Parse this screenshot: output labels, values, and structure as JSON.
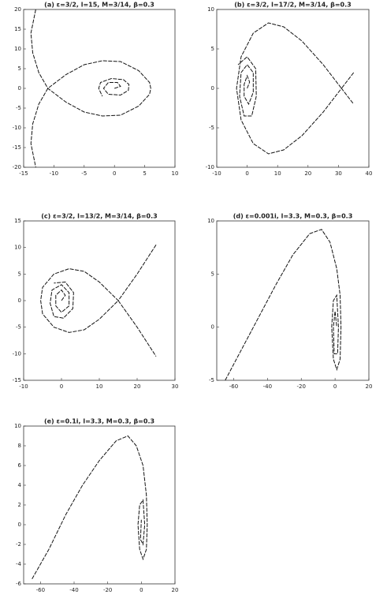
{
  "chart_data": [
    {
      "type": "line",
      "title": "(a) ε=3/2, l=15, M=3/14, β=0.3",
      "color": "#111111",
      "xlim": [
        -15,
        10
      ],
      "xticks": [
        -15,
        -10,
        -5,
        0,
        5,
        10
      ],
      "ylim": [
        -20,
        20
      ],
      "yticks": [
        -20,
        -15,
        -10,
        -5,
        0,
        5,
        10,
        15,
        20
      ],
      "x": [
        -13,
        -13.8,
        -13.5,
        -12.5,
        -11,
        -8,
        -5,
        -2,
        1,
        4,
        5.8,
        6,
        5.8,
        4,
        1,
        -2,
        -5,
        -8,
        -11,
        -12.5,
        -13.5,
        -13.8,
        -13,
        null,
        0,
        1,
        0.5,
        -1,
        -1.8,
        -1,
        1,
        2.3,
        2.4,
        1.5,
        -0.5,
        -2.3,
        -2.6,
        -2
      ],
      "values": [
        20,
        14,
        9,
        4,
        0,
        -3.5,
        -6,
        -7,
        -6.8,
        -4.5,
        -1.5,
        0,
        1.5,
        4.5,
        6.8,
        7,
        6,
        3.5,
        0,
        -4,
        -9,
        -14,
        -20,
        null,
        0,
        0.5,
        1.5,
        1.5,
        0,
        -1.5,
        -1.7,
        -0.5,
        1,
        2.2,
        2.5,
        1.5,
        0,
        -2
      ]
    },
    {
      "type": "line",
      "title": "(b) ε=3/2, l=17/2, M=3/14, β=0.3",
      "color": "#111111",
      "xlim": [
        -10,
        40
      ],
      "xticks": [
        -10,
        0,
        10,
        20,
        30,
        40
      ],
      "ylim": [
        -10,
        10
      ],
      "yticks": [
        -10,
        -5,
        0,
        5,
        10
      ],
      "x": [
        35,
        33,
        31,
        25,
        18,
        12,
        7,
        2,
        -2,
        -3.5,
        -2,
        2,
        7,
        12,
        18,
        25,
        31,
        33,
        35,
        null,
        0,
        0.8,
        0,
        -1,
        -1,
        0.5,
        2,
        2,
        0,
        -2,
        -2.5,
        -1,
        1.5,
        3,
        2.8,
        0,
        -3
      ],
      "values": [
        2,
        1,
        0,
        3,
        6,
        7.8,
        8.3,
        7,
        4,
        0,
        -4,
        -7,
        -8.3,
        -7.8,
        -6,
        -3,
        0,
        -1,
        -2,
        null,
        0,
        0.8,
        1.6,
        0.5,
        -1,
        -2,
        -0.5,
        2,
        3,
        2,
        -1,
        -3.5,
        -3.5,
        -1,
        2.5,
        4,
        3
      ]
    },
    {
      "type": "line",
      "title": "(c) ε=3/2, l=13/2, M=3/14, β=0.3",
      "color": "#111111",
      "xlim": [
        -10,
        30
      ],
      "xticks": [
        -10,
        0,
        10,
        20,
        30
      ],
      "ylim": [
        -15,
        15
      ],
      "yticks": [
        -15,
        -10,
        -5,
        0,
        5,
        10,
        15
      ],
      "x": [
        25,
        20,
        15,
        10,
        6,
        2,
        -2,
        -5,
        -5.5,
        -5,
        -2,
        2,
        6,
        10,
        15,
        20,
        25,
        null,
        0,
        1,
        0,
        -1.5,
        -1.5,
        0,
        2,
        2,
        0,
        -2.5,
        -3,
        -2,
        0.5,
        3,
        3.2,
        1,
        -2
      ],
      "values": [
        10.5,
        5,
        0,
        3.5,
        5.5,
        6,
        5,
        2.5,
        0,
        -2.5,
        -5,
        -6,
        -5.5,
        -3.5,
        0,
        -5,
        -10.5,
        null,
        0,
        1,
        2,
        1,
        -1,
        -2.2,
        -1,
        1.5,
        3,
        2,
        -0.5,
        -3,
        -3.3,
        -1.5,
        1.5,
        3.5,
        3.3
      ]
    },
    {
      "type": "line",
      "title": "(d) ε=0.001i, l=3.3, M=0.3, β=0.3",
      "color": "#111111",
      "xlim": [
        -70,
        20
      ],
      "xticks": [
        -60,
        -40,
        -20,
        0,
        20
      ],
      "ylim": [
        -5,
        10
      ],
      "yticks": [
        -5,
        0,
        5,
        10
      ],
      "x": [
        -65,
        -55,
        -45,
        -35,
        -25,
        -15,
        -8,
        -3,
        1,
        3,
        3.5,
        3,
        1,
        -1,
        -2,
        -1,
        1,
        2,
        1.5,
        -0.5,
        -1,
        0,
        1
      ],
      "values": [
        -5,
        -2,
        1,
        4,
        6.8,
        8.8,
        9.2,
        8,
        5.5,
        3,
        0,
        -3,
        -4,
        -3,
        0,
        2.5,
        3,
        0,
        -2.5,
        -2.5,
        0,
        1.5,
        0
      ]
    },
    {
      "type": "line",
      "title": "(e) ε=0.1i, l=3.3, M=0.3, β=0.3",
      "color": "#111111",
      "xlim": [
        -70,
        20
      ],
      "xticks": [
        -60,
        -40,
        -20,
        0,
        20
      ],
      "ylim": [
        -6,
        10
      ],
      "yticks": [
        -6,
        -4,
        -2,
        0,
        2,
        4,
        6,
        8,
        10
      ],
      "x": [
        -65,
        -55,
        -45,
        -35,
        -25,
        -15,
        -8,
        -3,
        1,
        3,
        3.5,
        3,
        1,
        -1,
        -2,
        -1,
        1,
        2,
        1,
        -0.5,
        0
      ],
      "values": [
        -5.5,
        -2.5,
        1,
        4,
        6.5,
        8.5,
        9,
        8,
        6,
        3,
        0,
        -2.5,
        -3.5,
        -2.5,
        0,
        2,
        2.5,
        0,
        -2,
        -1.5,
        0.5
      ]
    }
  ]
}
